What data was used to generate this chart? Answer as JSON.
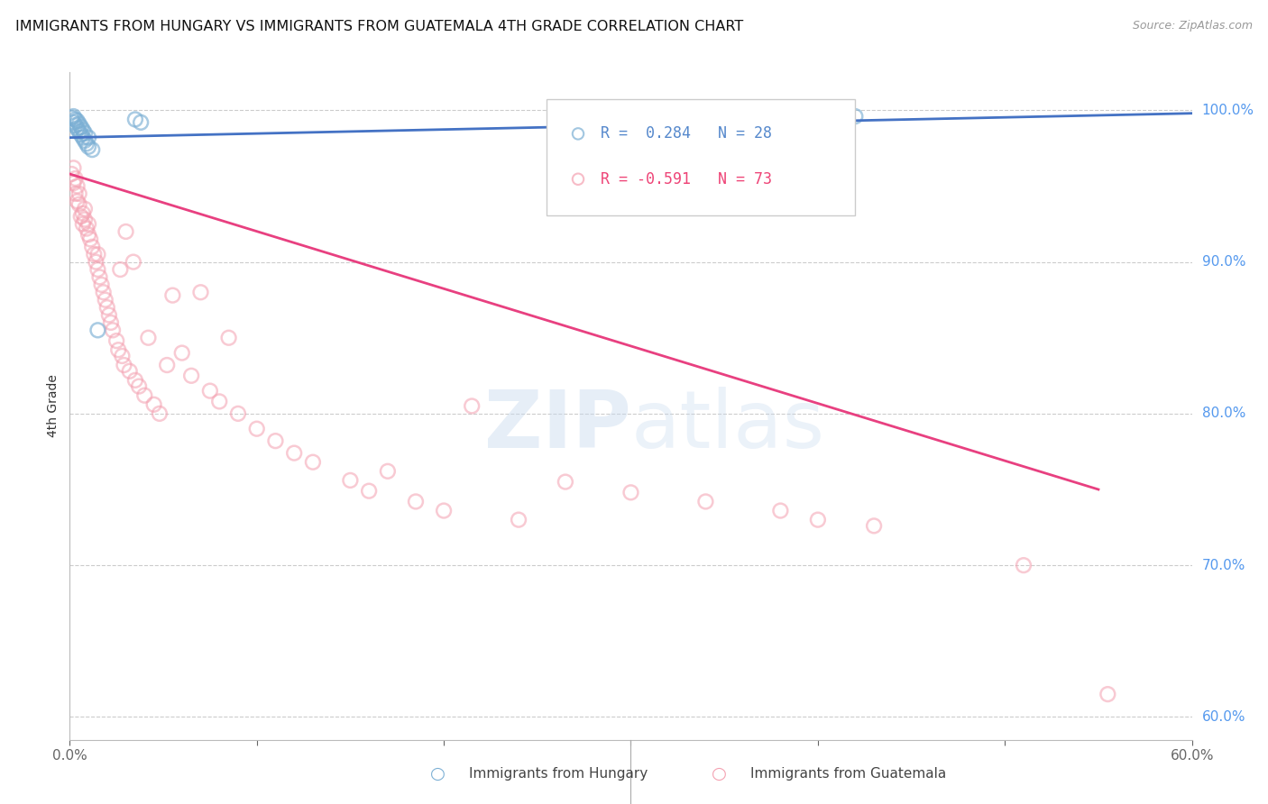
{
  "title": "IMMIGRANTS FROM HUNGARY VS IMMIGRANTS FROM GUATEMALA 4TH GRADE CORRELATION CHART",
  "source": "Source: ZipAtlas.com",
  "ylabel_left": "4th Grade",
  "ylabel_right_ticks": [
    "100.0%",
    "90.0%",
    "80.0%",
    "70.0%",
    "60.0%"
  ],
  "ylabel_right_values": [
    1.0,
    0.9,
    0.8,
    0.7,
    0.6
  ],
  "xmin": 0.0,
  "xmax": 0.6,
  "ymin": 0.585,
  "ymax": 1.025,
  "legend_line1": "R =  0.284   N = 28",
  "legend_line2": "R = -0.591   N = 73",
  "hungary_color": "#7BAFD4",
  "guatemala_color": "#F4A0B0",
  "hungary_trend_color": "#4472C4",
  "guatemala_trend_color": "#E84080",
  "hungary_x": [
    0.001,
    0.002,
    0.002,
    0.003,
    0.003,
    0.004,
    0.004,
    0.005,
    0.005,
    0.006,
    0.006,
    0.007,
    0.007,
    0.008,
    0.008,
    0.009,
    0.01,
    0.01,
    0.012,
    0.015,
    0.035,
    0.038,
    0.29,
    0.315,
    0.34,
    0.37,
    0.4,
    0.42
  ],
  "hungary_y": [
    0.995,
    0.992,
    0.996,
    0.99,
    0.994,
    0.988,
    0.993,
    0.986,
    0.991,
    0.984,
    0.989,
    0.982,
    0.987,
    0.98,
    0.985,
    0.978,
    0.976,
    0.982,
    0.974,
    0.855,
    0.994,
    0.992,
    0.998,
    0.996,
    0.997,
    0.998,
    0.999,
    0.996
  ],
  "guatemala_x": [
    0.001,
    0.002,
    0.002,
    0.003,
    0.003,
    0.004,
    0.004,
    0.005,
    0.005,
    0.006,
    0.007,
    0.007,
    0.008,
    0.008,
    0.009,
    0.01,
    0.01,
    0.011,
    0.012,
    0.013,
    0.014,
    0.015,
    0.015,
    0.016,
    0.017,
    0.018,
    0.019,
    0.02,
    0.021,
    0.022,
    0.023,
    0.025,
    0.026,
    0.027,
    0.028,
    0.029,
    0.03,
    0.032,
    0.034,
    0.035,
    0.037,
    0.04,
    0.042,
    0.045,
    0.048,
    0.052,
    0.055,
    0.06,
    0.065,
    0.07,
    0.075,
    0.08,
    0.085,
    0.09,
    0.1,
    0.11,
    0.12,
    0.13,
    0.15,
    0.16,
    0.17,
    0.185,
    0.2,
    0.215,
    0.24,
    0.265,
    0.3,
    0.34,
    0.38,
    0.4,
    0.43,
    0.51,
    0.555
  ],
  "guatemala_y": [
    0.958,
    0.952,
    0.962,
    0.945,
    0.955,
    0.94,
    0.95,
    0.938,
    0.945,
    0.93,
    0.932,
    0.925,
    0.928,
    0.935,
    0.922,
    0.918,
    0.925,
    0.915,
    0.91,
    0.905,
    0.9,
    0.895,
    0.905,
    0.89,
    0.885,
    0.88,
    0.875,
    0.87,
    0.865,
    0.86,
    0.855,
    0.848,
    0.842,
    0.895,
    0.838,
    0.832,
    0.92,
    0.828,
    0.9,
    0.822,
    0.818,
    0.812,
    0.85,
    0.806,
    0.8,
    0.832,
    0.878,
    0.84,
    0.825,
    0.88,
    0.815,
    0.808,
    0.85,
    0.8,
    0.79,
    0.782,
    0.774,
    0.768,
    0.756,
    0.749,
    0.762,
    0.742,
    0.736,
    0.805,
    0.73,
    0.755,
    0.748,
    0.742,
    0.736,
    0.73,
    0.726,
    0.7,
    0.615
  ],
  "hungary_trend_x": [
    0.0,
    0.6
  ],
  "hungary_trend_y": [
    0.982,
    0.998
  ],
  "guatemala_trend_x": [
    0.0,
    0.55
  ],
  "guatemala_trend_y": [
    0.958,
    0.75
  ]
}
